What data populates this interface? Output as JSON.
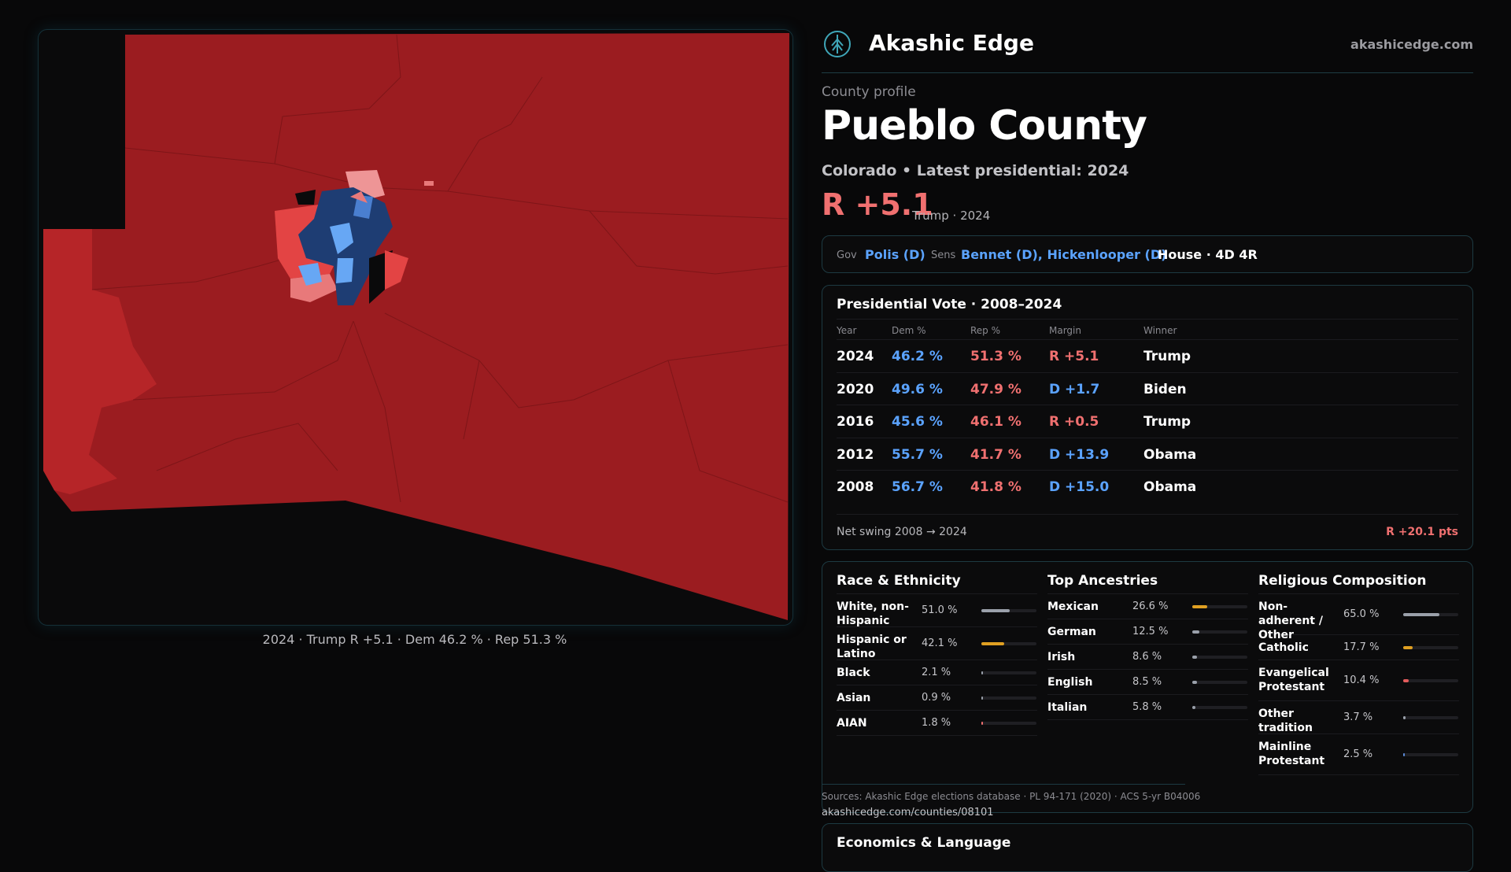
{
  "brand": {
    "name": "Akashic Edge",
    "site": "akashicedge.com",
    "logo_icon": "tree-emblem-icon"
  },
  "profile": {
    "eyebrow": "County profile",
    "title": "Pueblo County",
    "subtitle": "Colorado • Latest presidential: 2024",
    "margin": "R +5.1",
    "margin_note": "Trump · 2024"
  },
  "officials": {
    "gov_label": "Gov",
    "gov": "Polis (D)",
    "sens_label": "Sens",
    "sens": "Bennet (D), Hickenlooper (D)",
    "house": "House · 4D 4R"
  },
  "presidential": {
    "title": "Presidential Vote · 2008–2024",
    "headers": {
      "year": "Year",
      "dem": "Dem %",
      "rep": "Rep %",
      "margin": "Margin",
      "winner": "Winner"
    },
    "rows": [
      {
        "year": "2024",
        "dem": "46.2 %",
        "rep": "51.3 %",
        "margin": "R +5.1",
        "winner": "Trump"
      },
      {
        "year": "2020",
        "dem": "49.6 %",
        "rep": "47.9 %",
        "margin": "D +1.7",
        "winner": "Biden"
      },
      {
        "year": "2016",
        "dem": "45.6 %",
        "rep": "46.1 %",
        "margin": "R +0.5",
        "winner": "Trump"
      },
      {
        "year": "2012",
        "dem": "55.7 %",
        "rep": "41.7 %",
        "margin": "D +13.9",
        "winner": "Obama"
      },
      {
        "year": "2008",
        "dem": "56.7 %",
        "rep": "41.8 %",
        "margin": "D +15.0",
        "winner": "Obama"
      }
    ],
    "swing_label": "Net swing 2008 → 2024",
    "swing_value": "R +20.1 pts"
  },
  "race": {
    "title": "Race & Ethnicity",
    "items": [
      {
        "name": "White, non-Hispanic",
        "value": "51.0 %",
        "fraction": 0.51
      },
      {
        "name": "Hispanic or Latino",
        "value": "42.1 %",
        "fraction": 0.421
      },
      {
        "name": "Black",
        "value": "2.1 %",
        "fraction": 0.021
      },
      {
        "name": "Asian",
        "value": "0.9 %",
        "fraction": 0.009
      },
      {
        "name": "AIAN",
        "value": "1.8 %",
        "fraction": 0.018
      }
    ]
  },
  "ancestry": {
    "title": "Top Ancestries",
    "items": [
      {
        "name": "Mexican",
        "value": "26.6 %",
        "fraction": 0.266
      },
      {
        "name": "German",
        "value": "12.5 %",
        "fraction": 0.125
      },
      {
        "name": "Irish",
        "value": "8.6 %",
        "fraction": 0.086
      },
      {
        "name": "English",
        "value": "8.5 %",
        "fraction": 0.085
      },
      {
        "name": "Italian",
        "value": "5.8 %",
        "fraction": 0.058
      }
    ]
  },
  "religion": {
    "title": "Religious Composition",
    "items": [
      {
        "name": "Non-adherent / Other",
        "value": "65.0 %",
        "fraction": 0.65
      },
      {
        "name": "Catholic",
        "value": "17.7 %",
        "fraction": 0.177
      },
      {
        "name": "Evangelical Protestant",
        "value": "10.4 %",
        "fraction": 0.104
      },
      {
        "name": "Other tradition",
        "value": "3.7 %",
        "fraction": 0.037
      },
      {
        "name": "Mainline Protestant",
        "value": "2.5 %",
        "fraction": 0.025
      }
    ]
  },
  "sources": "Sources: Akashic Edge elections database · PL 94-171 (2020) · ACS 5-yr B04006",
  "source_url": "akashicedge.com/counties/08101",
  "economics_title": "Economics & Language",
  "map": {
    "caption": "2024 · Trump R +5.1 · Dem 46.2 % · Rep 51.3 %"
  },
  "colors": {
    "dem": "#5ba3ff",
    "rep": "#f07070",
    "rep_dark": "#9b1c20",
    "rep_mid": "#b62528",
    "rep_light": "#e8797a",
    "dem_dark": "#1e3d73",
    "dem_light": "#67a7f4",
    "hispanic": "#e0a022",
    "neutral_bar": "#9aa0aa",
    "evangelical": "#e35b5b",
    "mainline": "#5b8bd9"
  }
}
